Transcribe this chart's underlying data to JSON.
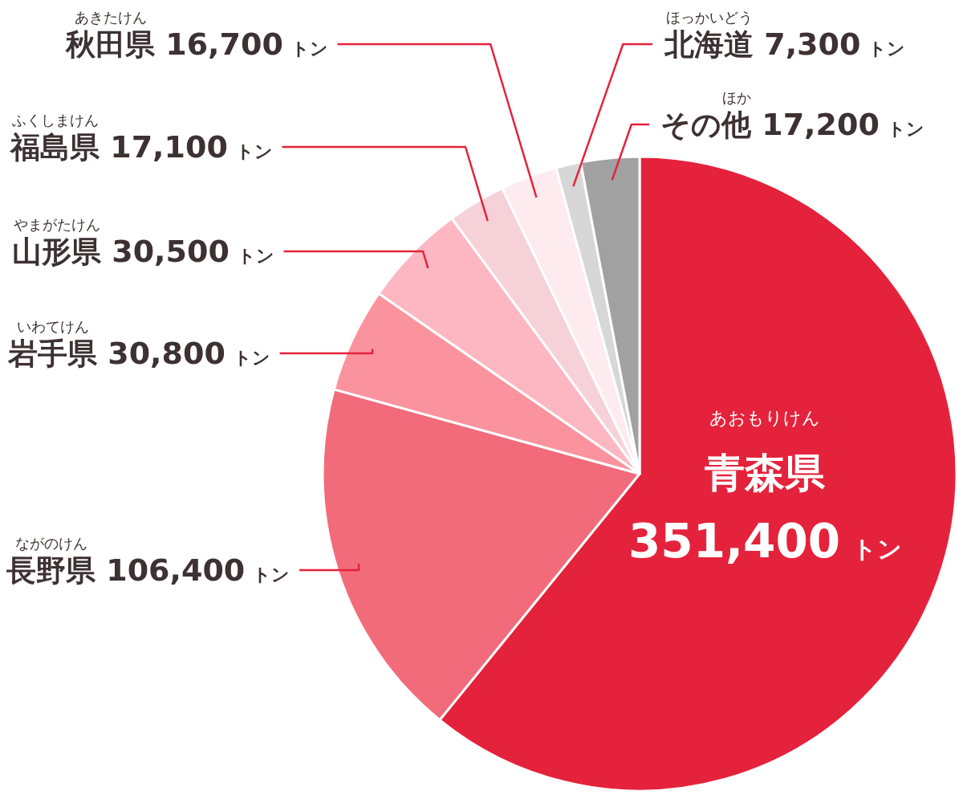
{
  "chart_data": {
    "type": "pie",
    "categories": [
      "青森県",
      "長野県",
      "岩手県",
      "山形県",
      "福島県",
      "秋田県",
      "北海道",
      "その他"
    ],
    "values": [
      351400,
      106400,
      30800,
      30500,
      17100,
      16700,
      7300,
      17200
    ],
    "colors": [
      "#e5223b",
      "#f26b7b",
      "#fb939f",
      "#fdb7c3",
      "#f6d2d8",
      "#fdebef",
      "#d7d7d7",
      "#a1a1a1"
    ],
    "value_labels": [
      "351,400 トン",
      "106,400 トン",
      "30,800 トン",
      "30,500 トン",
      "17,100 トン",
      "16,700 トン",
      "7,300 トン",
      "17,200 トン"
    ],
    "annotations": [
      "あおもりけん",
      "ながのけん",
      "いわてけん",
      "やまがたけん",
      "ふくしまけん",
      "あきたけん",
      "ほっかいどう",
      "ほか"
    ]
  }
}
